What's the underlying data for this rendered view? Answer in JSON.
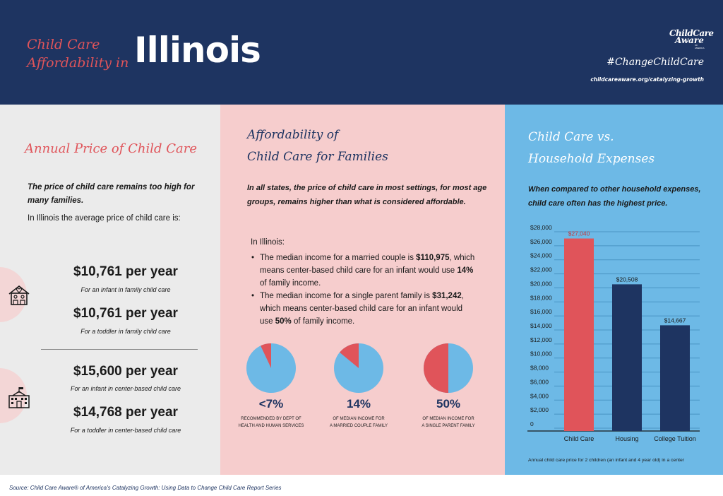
{
  "header": {
    "title_prefix_line1": "Child Care",
    "title_prefix_line2": "Affordability in",
    "state": "Illinois",
    "logo_line1": "ChildCare",
    "logo_line2": "Aware",
    "logo_line3": "OF AMERICA",
    "hashtag": "#ChangeChildCare",
    "url": "childcareaware.org/catalyzing-growth"
  },
  "col1": {
    "title": "Annual Price of Child Care",
    "lead": "The price of child care remains too high for many families.",
    "intro": "In Illinois the average price of child care is:",
    "family_icon": "family-house-icon",
    "center_icon": "school-building-icon",
    "prices": [
      {
        "amount": "$10,761 per year",
        "desc": "For an infant in family child care"
      },
      {
        "amount": "$10,761 per year",
        "desc": "For a toddler in family child care"
      },
      {
        "amount": "$15,600 per year",
        "desc": "For an infant in center-based child care"
      },
      {
        "amount": "$14,768 per year",
        "desc": "For a toddler in center-based child care"
      }
    ]
  },
  "col2": {
    "title_line1": "Affordability of",
    "title_line2": "Child Care for Families",
    "lead": "In all states, the price of child care in most settings, for most age groups, remains higher than what is considered affordable.",
    "in_state": "In Illinois:",
    "bullets": [
      {
        "pre": "The median income for a married couple is ",
        "income": "$110,975",
        "mid": ", which means center-based child care for an infant would use ",
        "pct": "14%",
        "post": " of family income."
      },
      {
        "pre": "The median income for a single parent family is ",
        "income": "$31,242",
        "mid": ", which means center-based child care for an infant would use ",
        "pct": "50%",
        "post": " of family income."
      }
    ],
    "pies": [
      {
        "label": "<7%",
        "value": 7,
        "caption_line1": "RECOMMENDED BY DEPT OF",
        "caption_line2": "HEALTH AND HUMAN SERVICES"
      },
      {
        "label": "14%",
        "value": 14,
        "caption_line1": "OF MEDIAN INCOME FOR",
        "caption_line2": "A MARRIED COUPLE FAMILY"
      },
      {
        "label": "50%",
        "value": 50,
        "caption_line1": "OF MEDIAN INCOME FOR",
        "caption_line2": "A SINGLE PARENT FAMILY"
      }
    ],
    "colors": {
      "slice": "#e0545a",
      "rest": "#6db9e6"
    }
  },
  "col3": {
    "title_line1": "Child Care vs.",
    "title_line2": "Household Expenses",
    "lead": "When compared to other household expenses, child care often has the highest price.",
    "note": "Annual child care price for 2 children (an infant and 4 year old) in a center"
  },
  "chart_data": {
    "type": "bar",
    "categories": [
      "Child Care",
      "Housing",
      "College Tuition"
    ],
    "values": [
      27040,
      20508,
      14667
    ],
    "data_labels": [
      "$27,040",
      "$20,508",
      "$14,667"
    ],
    "colors": [
      "#e0545a",
      "#1e3461",
      "#1e3461"
    ],
    "ylim": [
      0,
      28000
    ],
    "ytick_step": 2000,
    "yticks": [
      "0",
      "$2,000",
      "$4,000",
      "$6,000",
      "$8,000",
      "$10,000",
      "$12,000",
      "$14,000",
      "$16,000",
      "$18,000",
      "$20,000",
      "$22,000",
      "$24,000",
      "$26,000",
      "$28,000"
    ],
    "grid": true
  },
  "footer": {
    "source": "Source: Child Care Aware® of America's Catalyzing Growth: Using Data to Change Child Care Report Series"
  }
}
